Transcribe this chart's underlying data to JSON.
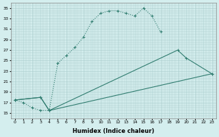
{
  "xlabel": "Humidex (Indice chaleur)",
  "background_color": "#d4eeee",
  "grid_color": "#b8d8d8",
  "line_color": "#2e7b6e",
  "xlim": [
    -0.5,
    23.5
  ],
  "ylim": [
    14,
    36
  ],
  "yticks": [
    15,
    17,
    19,
    21,
    23,
    25,
    27,
    29,
    31,
    33,
    35
  ],
  "xticks": [
    0,
    1,
    2,
    3,
    4,
    5,
    6,
    7,
    8,
    9,
    10,
    11,
    12,
    13,
    14,
    15,
    16,
    17,
    18,
    19,
    20,
    21,
    22,
    23
  ],
  "line1_x": [
    0,
    1,
    2,
    3,
    4,
    5,
    6,
    7,
    8,
    9,
    10,
    11,
    12,
    13,
    14,
    15,
    16,
    17
  ],
  "line1_y": [
    17.5,
    17.0,
    16.0,
    15.5,
    15.5,
    24.5,
    26.0,
    27.5,
    29.5,
    32.5,
    34.0,
    34.5,
    34.5,
    34.0,
    33.5,
    35.0,
    33.5,
    30.5
  ],
  "line2_x": [
    0,
    3,
    4,
    19,
    20,
    23
  ],
  "line2_y": [
    17.5,
    18.0,
    15.5,
    27.0,
    25.5,
    22.5
  ],
  "line3_x": [
    0,
    3,
    4,
    23
  ],
  "line3_y": [
    17.5,
    18.0,
    15.5,
    22.5
  ]
}
